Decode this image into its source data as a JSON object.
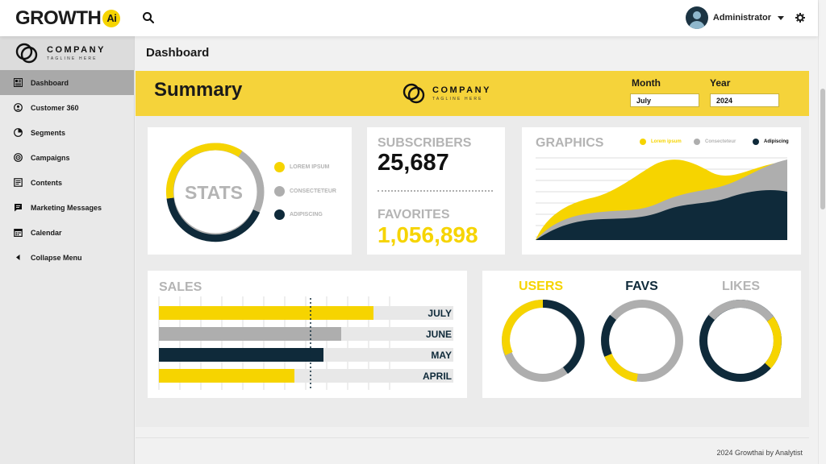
{
  "brand": {
    "name": "GROWTH",
    "badge": "Ai"
  },
  "header": {
    "user_name": "Administrator"
  },
  "company": {
    "name": "COMPANY",
    "tagline": "TAGLINE HERE"
  },
  "sidebar": {
    "items": [
      {
        "label": "Dashboard",
        "icon": "dashboard-icon",
        "active": true
      },
      {
        "label": "Customer 360",
        "icon": "customer-icon"
      },
      {
        "label": "Segments",
        "icon": "pie-icon"
      },
      {
        "label": "Campaigns",
        "icon": "target-icon"
      },
      {
        "label": "Contents",
        "icon": "document-icon"
      },
      {
        "label": "Marketing Messages",
        "icon": "message-icon"
      },
      {
        "label": "Calendar",
        "icon": "calendar-icon"
      },
      {
        "label": "Collapse Menu",
        "icon": "caret-left-icon"
      }
    ]
  },
  "page": {
    "title": "Dashboard"
  },
  "summary": {
    "title": "Summary",
    "month_label": "Month",
    "month_value": "July",
    "year_label": "Year",
    "year_value": "2024"
  },
  "stats": {
    "title": "STATS",
    "legend": [
      "LOREM IPSUM",
      "CONSECTETEUR",
      "ADIPISCING"
    ]
  },
  "subscribers": {
    "label": "SUBSCRIBERS",
    "value": "25,687"
  },
  "favorites": {
    "label": "FAVORITES",
    "value": "1,056,898"
  },
  "graphics": {
    "title": "GRAPHICS",
    "legend": [
      "Lorem ipsum",
      "Consecteteur",
      "Adipiscing"
    ]
  },
  "sales": {
    "title": "SALES",
    "rows": [
      {
        "label": "JULY",
        "value": 0.73,
        "color": "#f6d400"
      },
      {
        "label": "JUNE",
        "value": 0.62,
        "color": "#aeaeae"
      },
      {
        "label": "MAY",
        "value": 0.56,
        "color": "#0f2a3a"
      },
      {
        "label": "APRIL",
        "value": 0.46,
        "color": "#f6d400"
      }
    ]
  },
  "rings": {
    "users_label": "USERS",
    "favs_label": "FAVS",
    "likes_label": "LIKES"
  },
  "footer": {
    "text": "2024 Growthai by Analytist"
  },
  "colors": {
    "accent": "#f6d400",
    "summary_bg": "#f5d33a",
    "grey": "#aeaeae",
    "navy": "#0f2a3a"
  }
}
